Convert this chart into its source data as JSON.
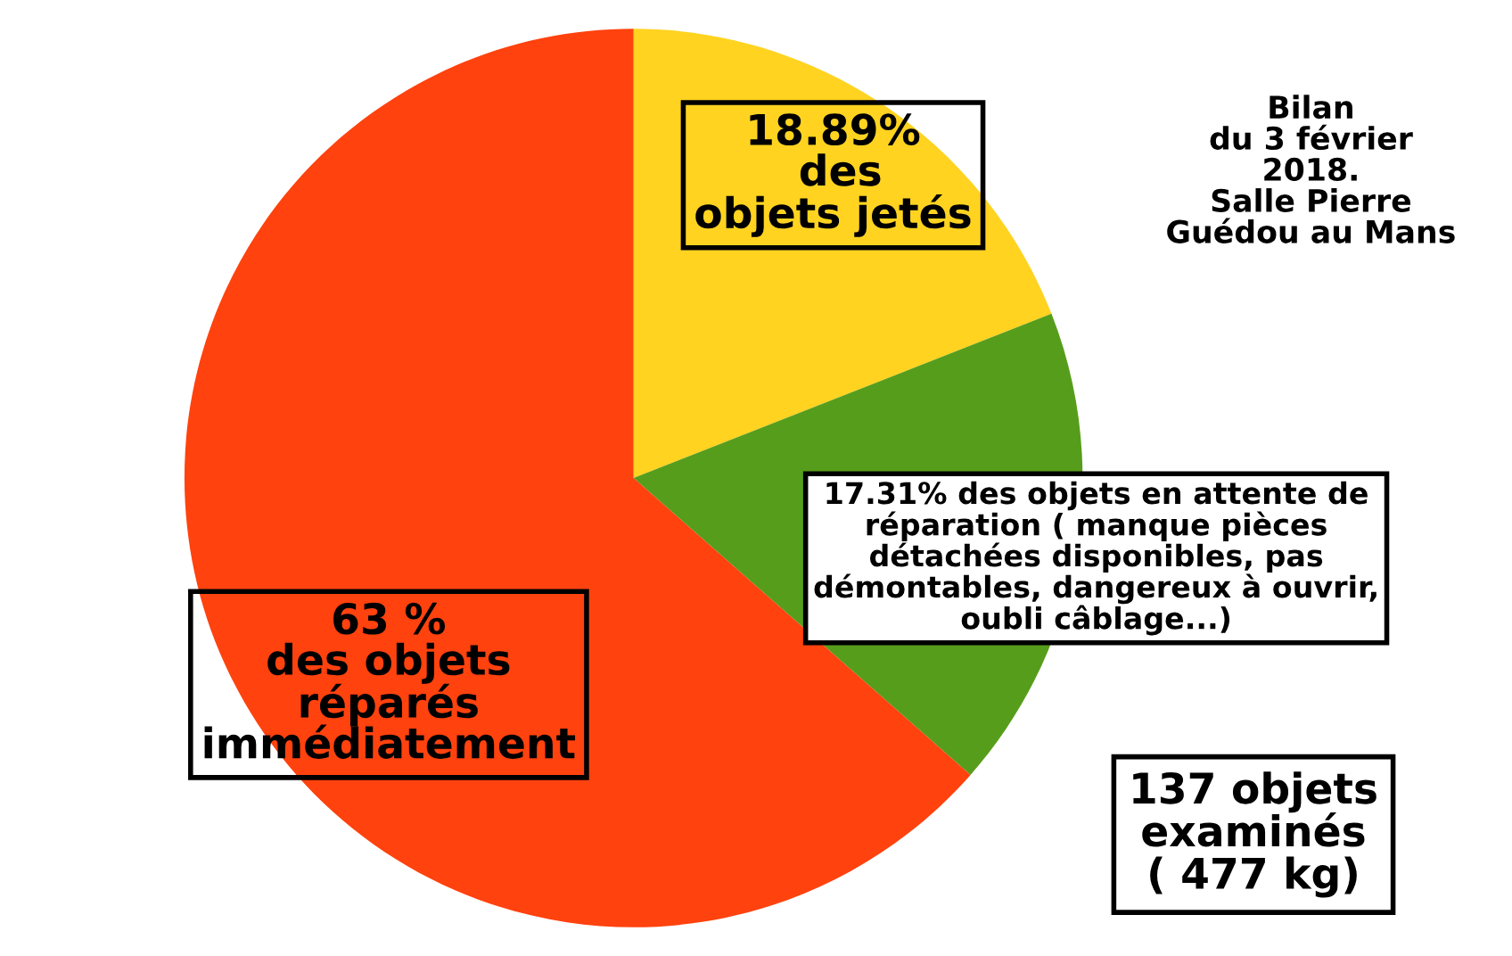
{
  "chart_data": {
    "type": "pie",
    "title": "Bilan\ndu 3 février\n2018.\nSalle Pierre\nGuédou au Mans",
    "categories": [
      "18.89%\n des\nobjets jetés",
      "17.31% des objets en attente de\nréparation ( manque pièces\ndétachées disponibles, pas\ndémontables, dangereux à ouvrir,\noubli câblage...)",
      "63 %\ndes objets\nréparés\nimmédiatement"
    ],
    "values": [
      18.89,
      17.31,
      63
    ],
    "colors": [
      "#ffd320",
      "#579d1c",
      "#ff420e"
    ],
    "annotations": [
      "137 objets\nexaminés\n( 477 kg)"
    ]
  }
}
